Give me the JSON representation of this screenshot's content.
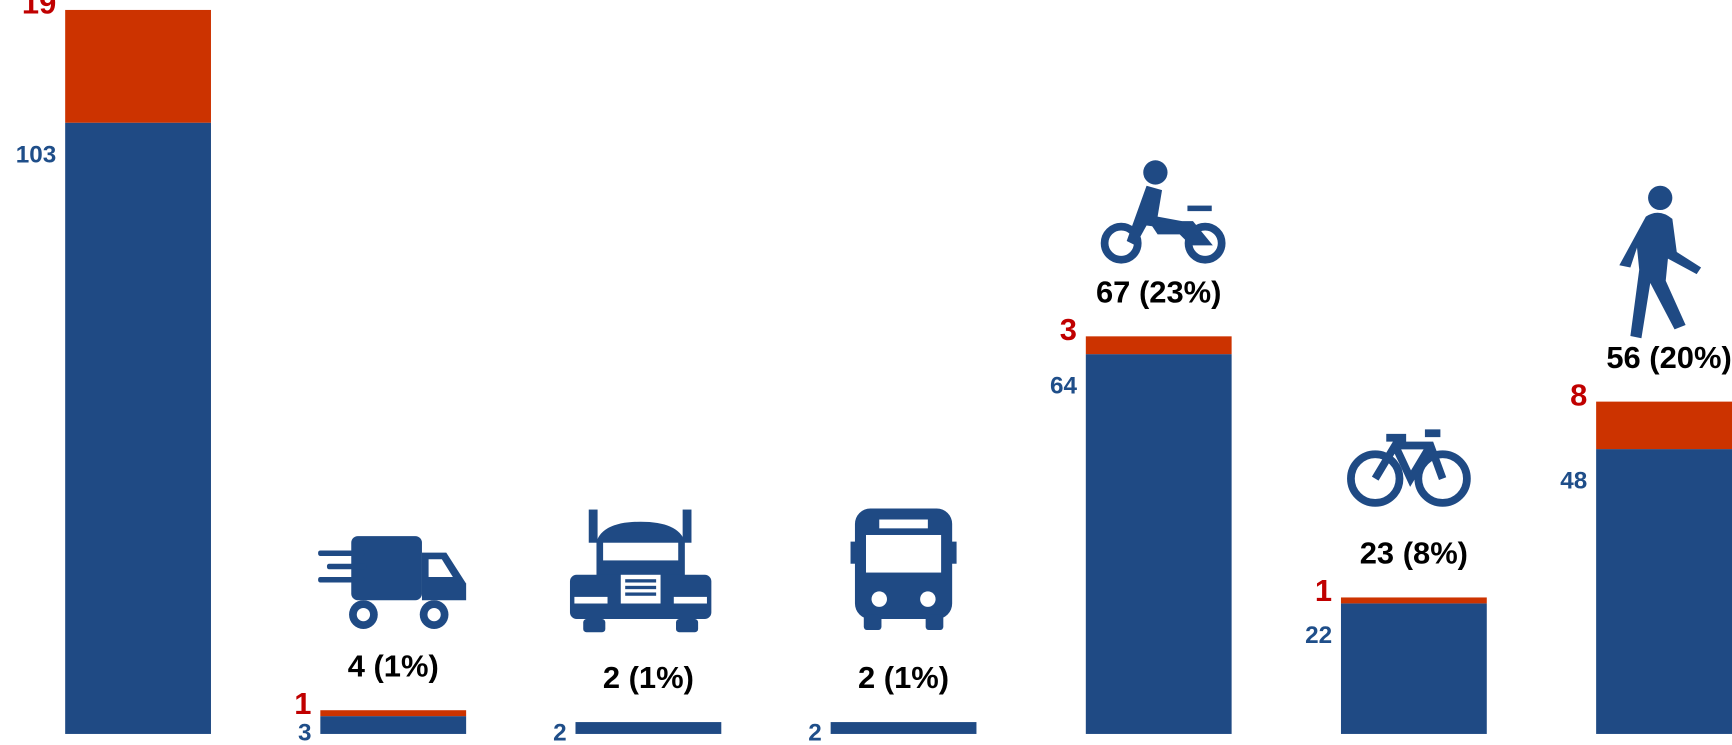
{
  "chart_data": {
    "type": "stacked-bar",
    "categories": [
      null,
      null,
      null,
      null,
      null,
      null,
      null
    ],
    "series": [
      {
        "color": "#1f4a84",
        "label_color": "#1f4e89",
        "values": [
          103,
          3,
          2,
          2,
          64,
          22,
          48
        ]
      },
      {
        "color": "#cc3300",
        "label_color": "#c00000",
        "values": [
          19,
          1,
          null,
          null,
          3,
          1,
          8
        ]
      }
    ],
    "total_labels": [
      null,
      "4 (1%)",
      "2 (1%)",
      "2 (1%)",
      "67 (23%)",
      "23 (8%)",
      "56 (20%)"
    ]
  }
}
